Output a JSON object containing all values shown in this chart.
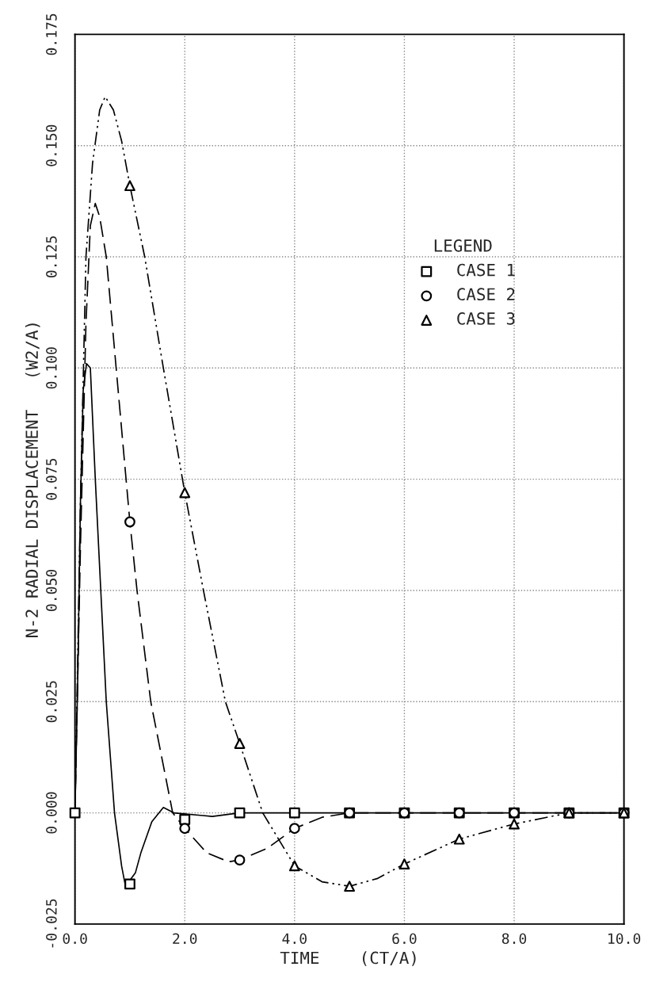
{
  "chart_data": {
    "type": "line",
    "xlabel": "TIME    (CT/A)",
    "ylabel": "N-2 RADIAL DISPLACEMENT   (W2/A)",
    "legend_title": "LEGEND",
    "xlim": [
      0,
      10
    ],
    "xticks": [
      {
        "value": 0,
        "label": "0.0"
      },
      {
        "value": 2,
        "label": "2.0"
      },
      {
        "value": 4,
        "label": "4.0"
      },
      {
        "value": 6,
        "label": "6.0"
      },
      {
        "value": 8,
        "label": "8.0"
      },
      {
        "value": 10,
        "label": "10.0"
      }
    ],
    "ylim": [
      -0.025,
      0.175
    ],
    "yticks": [
      -0.025,
      {
        "value": 0,
        "label": "0.000"
      },
      0.025,
      {
        "value": 0.05,
        "label": "0.050"
      },
      0.075,
      {
        "value": 0.1,
        "label": "0.100"
      },
      0.125,
      {
        "value": 0.15,
        "label": "0.150"
      },
      0.175
    ],
    "grid": true,
    "legend": "right",
    "series": [
      {
        "color": "#000000",
        "marker": "none",
        "line_style": "solid",
        "x": [
          0,
          0.05,
          0.1,
          0.15,
          0.21,
          0.28,
          0.37,
          0.47,
          0.57,
          0.72,
          0.85,
          0.92,
          1.1,
          1.2,
          1.4,
          1.61,
          1.8,
          2.5,
          3,
          4,
          5,
          6,
          7,
          8,
          9,
          10
        ],
        "values": [
          0,
          0.03,
          0.07,
          0.095,
          0.101,
          0.1,
          0.075,
          0.05,
          0.025,
          0,
          -0.012,
          -0.0165,
          -0.0135,
          -0.009,
          -0.002,
          0.0012,
          0,
          -0.0008,
          0,
          0,
          0,
          0,
          0,
          0,
          0,
          0
        ]
      },
      {
        "color": "#000000",
        "marker": "none",
        "line_style": "dashed",
        "x": [
          0,
          0.1,
          0.2,
          0.28,
          0.37,
          0.45,
          0.57,
          0.75,
          1,
          1.13,
          1.38,
          1.78,
          2,
          2.4,
          2.8,
          3,
          3.5,
          4,
          4.5,
          5,
          6,
          7,
          8,
          9,
          10
        ],
        "values": [
          0,
          0.06,
          0.11,
          0.132,
          0.137,
          0.134,
          0.125,
          0.1,
          0.0654,
          0.05,
          0.025,
          0,
          -0.0035,
          -0.009,
          -0.011,
          -0.0106,
          -0.008,
          -0.0035,
          -0.001,
          0,
          0,
          0,
          0,
          0,
          0
        ]
      },
      {
        "color": "#000000",
        "marker": "none",
        "line_style": "dashdot",
        "x": [
          0,
          0.1,
          0.2,
          0.32,
          0.45,
          0.55,
          0.7,
          0.85,
          1,
          1.27,
          1.61,
          2,
          2.34,
          2.74,
          3,
          3.42,
          4,
          4.5,
          5,
          5.5,
          6,
          7,
          8,
          9,
          10
        ],
        "values": [
          0,
          0.07,
          0.125,
          0.146,
          0.158,
          0.161,
          0.158,
          0.151,
          0.141,
          0.125,
          0.1,
          0.072,
          0.05,
          0.025,
          0.0156,
          0,
          -0.0119,
          -0.0155,
          -0.0165,
          -0.0148,
          -0.0115,
          -0.0059,
          -0.0025,
          0,
          0
        ]
      },
      {
        "type": "scatter",
        "name": "CASE 1",
        "color": "#000000",
        "marker": "square",
        "x": [
          0,
          1,
          2,
          3,
          4,
          5,
          6,
          7,
          8,
          9,
          10
        ],
        "values": [
          0,
          -0.016,
          -0.0015,
          0,
          0,
          0,
          0,
          0,
          0,
          0,
          0
        ]
      },
      {
        "type": "scatter",
        "name": "CASE 2",
        "color": "#000000",
        "marker": "circle",
        "x": [
          1,
          2,
          3,
          4,
          5,
          6,
          7,
          8,
          9,
          10
        ],
        "values": [
          0.0654,
          -0.0035,
          -0.0106,
          -0.0035,
          0,
          0,
          0,
          0,
          0,
          0
        ]
      },
      {
        "type": "scatter",
        "name": "CASE 3",
        "color": "#000000",
        "marker": "triangle",
        "x": [
          1,
          2,
          3,
          4,
          5,
          6,
          7,
          8,
          9,
          10
        ],
        "values": [
          0.141,
          0.072,
          0.0156,
          -0.0119,
          -0.0165,
          -0.0115,
          -0.0059,
          -0.0025,
          0,
          0
        ]
      }
    ]
  }
}
